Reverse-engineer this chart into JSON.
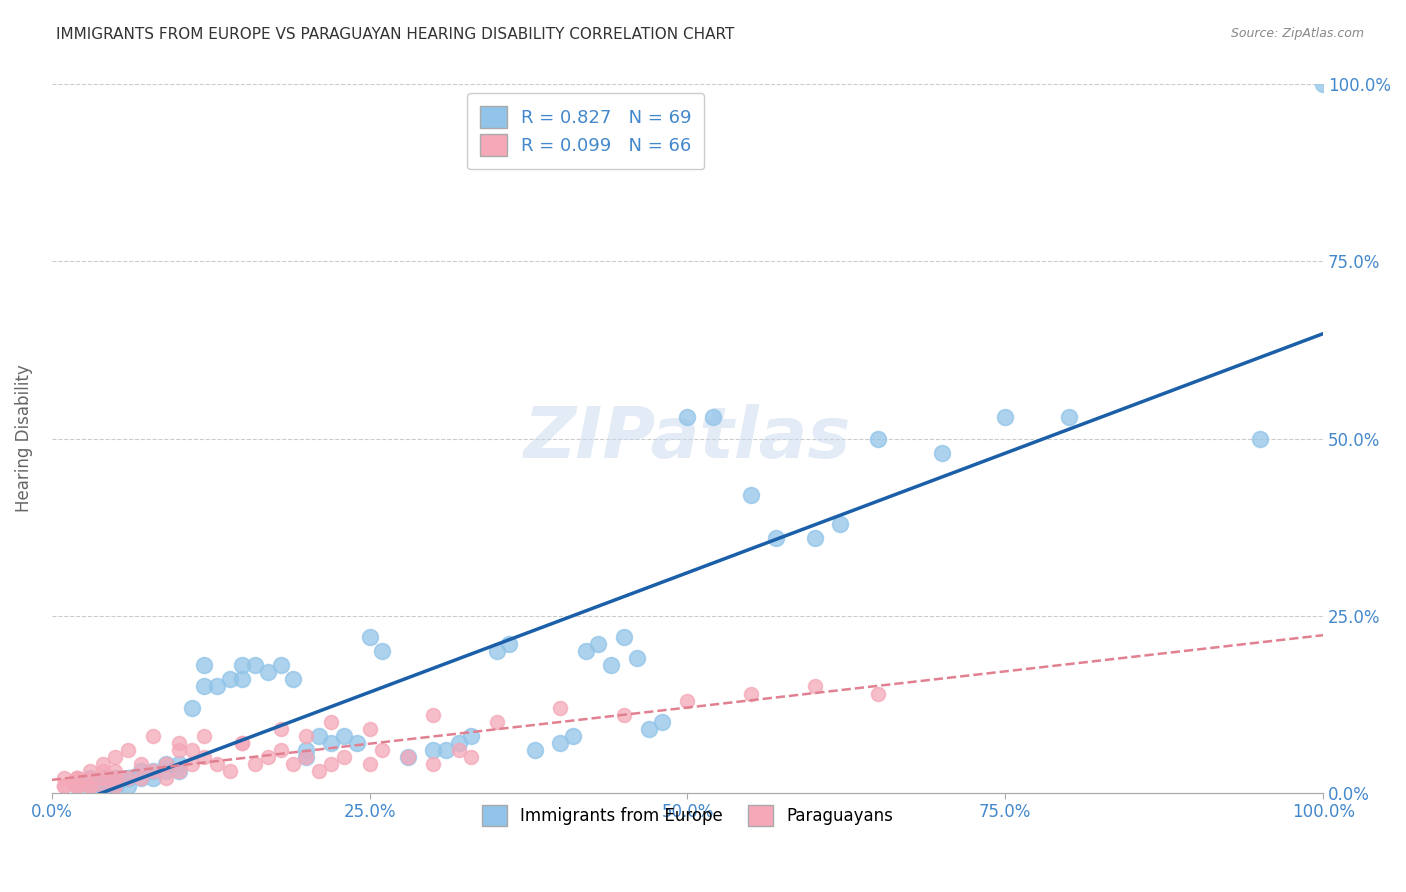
{
  "title": "IMMIGRANTS FROM EUROPE VS PARAGUAYAN HEARING DISABILITY CORRELATION CHART",
  "source": "Source: ZipAtlas.com",
  "ylabel": "Hearing Disability",
  "legend_label1": "Immigrants from Europe",
  "legend_label2": "Paraguayans",
  "r1": 0.827,
  "n1": 69,
  "r2": 0.099,
  "n2": 66,
  "color1": "#91c4e8",
  "color2": "#f4a8b8",
  "line_color1": "#1a5fa8",
  "line_color2": "#e08090",
  "title_color": "#333333",
  "axis_label_color": "#666666",
  "tick_color": "#4488cc",
  "source_color": "#888888",
  "legend_r_color": "#4488cc",
  "background": "#ffffff",
  "grid_color": "#cccccc",
  "xlim": [
    0,
    1
  ],
  "ylim": [
    0,
    1
  ],
  "xticks": [
    0.0,
    0.25,
    0.5,
    0.75,
    1.0
  ],
  "yticks": [
    0.0,
    0.25,
    0.5,
    0.75,
    1.0
  ],
  "xtick_labels": [
    "0.0%",
    "25.0%",
    "50.0%",
    "75.0%",
    "100.0%"
  ],
  "ytick_labels": [
    "0.0%",
    "25.0%",
    "50.0%",
    "75.0%",
    "100.0%"
  ],
  "blue_x": [
    0.02,
    0.03,
    0.03,
    0.04,
    0.04,
    0.04,
    0.05,
    0.05,
    0.05,
    0.05,
    0.06,
    0.06,
    0.06,
    0.07,
    0.07,
    0.08,
    0.08,
    0.09,
    0.09,
    0.1,
    0.1,
    0.11,
    0.12,
    0.12,
    0.13,
    0.14,
    0.15,
    0.15,
    0.16,
    0.17,
    0.18,
    0.19,
    0.2,
    0.2,
    0.21,
    0.22,
    0.23,
    0.24,
    0.25,
    0.26,
    0.28,
    0.3,
    0.31,
    0.32,
    0.33,
    0.35,
    0.36,
    0.38,
    0.4,
    0.41,
    0.42,
    0.43,
    0.44,
    0.45,
    0.46,
    0.47,
    0.48,
    0.5,
    0.52,
    0.55,
    0.57,
    0.6,
    0.62,
    0.65,
    0.7,
    0.75,
    0.8,
    0.95,
    1.0
  ],
  "blue_y": [
    0.01,
    0.01,
    0.02,
    0.01,
    0.01,
    0.02,
    0.01,
    0.01,
    0.02,
    0.02,
    0.01,
    0.02,
    0.02,
    0.02,
    0.03,
    0.02,
    0.03,
    0.03,
    0.04,
    0.03,
    0.04,
    0.12,
    0.15,
    0.18,
    0.15,
    0.16,
    0.16,
    0.18,
    0.18,
    0.17,
    0.18,
    0.16,
    0.05,
    0.06,
    0.08,
    0.07,
    0.08,
    0.07,
    0.22,
    0.2,
    0.05,
    0.06,
    0.06,
    0.07,
    0.08,
    0.2,
    0.21,
    0.06,
    0.07,
    0.08,
    0.2,
    0.21,
    0.18,
    0.22,
    0.19,
    0.09,
    0.1,
    0.53,
    0.53,
    0.42,
    0.36,
    0.36,
    0.38,
    0.5,
    0.48,
    0.53,
    0.53,
    0.5,
    1.0
  ],
  "pink_x": [
    0.01,
    0.01,
    0.01,
    0.02,
    0.02,
    0.02,
    0.02,
    0.02,
    0.02,
    0.03,
    0.03,
    0.03,
    0.03,
    0.04,
    0.04,
    0.04,
    0.04,
    0.05,
    0.05,
    0.05,
    0.05,
    0.06,
    0.06,
    0.07,
    0.07,
    0.08,
    0.08,
    0.09,
    0.09,
    0.1,
    0.1,
    0.11,
    0.12,
    0.13,
    0.14,
    0.15,
    0.16,
    0.17,
    0.18,
    0.19,
    0.2,
    0.21,
    0.22,
    0.23,
    0.25,
    0.26,
    0.28,
    0.3,
    0.32,
    0.33,
    0.1,
    0.11,
    0.12,
    0.15,
    0.18,
    0.2,
    0.22,
    0.25,
    0.3,
    0.35,
    0.4,
    0.45,
    0.5,
    0.55,
    0.6,
    0.65
  ],
  "pink_y": [
    0.01,
    0.01,
    0.02,
    0.01,
    0.01,
    0.01,
    0.02,
    0.02,
    0.02,
    0.01,
    0.01,
    0.02,
    0.03,
    0.01,
    0.02,
    0.03,
    0.04,
    0.01,
    0.02,
    0.03,
    0.05,
    0.02,
    0.06,
    0.02,
    0.04,
    0.03,
    0.08,
    0.02,
    0.04,
    0.03,
    0.06,
    0.04,
    0.05,
    0.04,
    0.03,
    0.07,
    0.04,
    0.05,
    0.06,
    0.04,
    0.05,
    0.03,
    0.04,
    0.05,
    0.04,
    0.06,
    0.05,
    0.04,
    0.06,
    0.05,
    0.07,
    0.06,
    0.08,
    0.07,
    0.09,
    0.08,
    0.1,
    0.09,
    0.11,
    0.1,
    0.12,
    0.11,
    0.13,
    0.14,
    0.15,
    0.14
  ]
}
